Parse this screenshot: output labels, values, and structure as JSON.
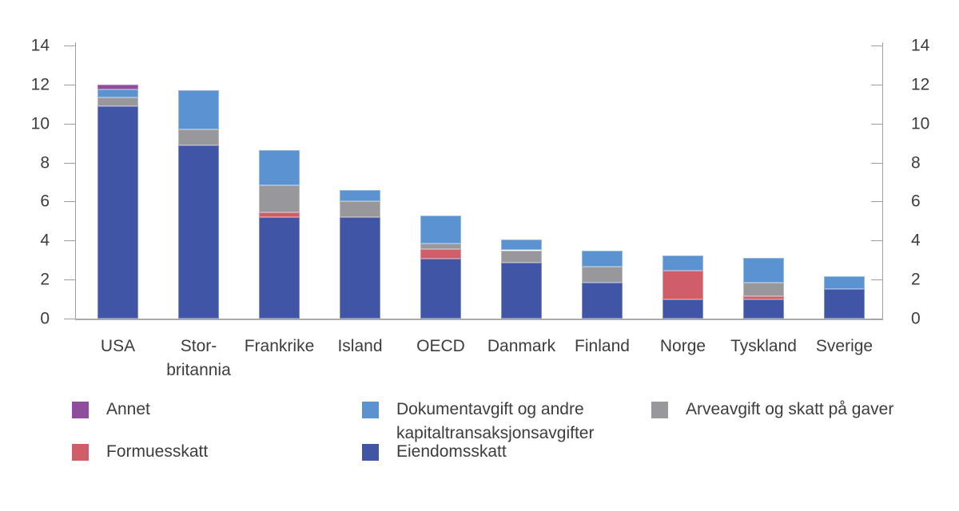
{
  "figure": {
    "background": "#ffffff",
    "text_color": "#3d3d3d",
    "axis_color": "#9e9e9e"
  },
  "chart_data": {
    "type": "bar",
    "stacked": true,
    "grid": false,
    "ylim": [
      0,
      14
    ],
    "y_ticks": [
      0,
      2,
      4,
      6,
      8,
      10,
      12,
      14
    ],
    "right_axis_mirror": true,
    "title": "",
    "xlabel": "",
    "ylabel": "",
    "categories": [
      "USA",
      "Storbritannia",
      "Frankrike",
      "Island",
      "OECD",
      "Danmark",
      "Finland",
      "Norge",
      "Tyskland",
      "Sverige"
    ],
    "categories_display": [
      "USA",
      "Stor-\nbritannia",
      "Frankrike",
      "Island",
      "OECD",
      "Danmark",
      "Finland",
      "Norge",
      "Tyskland",
      "Sverige"
    ],
    "series": [
      {
        "name": "Eiendomsskatt",
        "color": "#4055a6",
        "values": [
          10.9,
          8.9,
          5.2,
          5.2,
          3.05,
          2.85,
          1.85,
          1.0,
          1.0,
          1.5
        ]
      },
      {
        "name": "Formuesskatt",
        "color": "#d05e68",
        "values": [
          0,
          0,
          0.25,
          0,
          0.5,
          0,
          0,
          1.45,
          0.15,
          0
        ]
      },
      {
        "name": "Arveavgift og skatt på gaver",
        "color": "#98979b",
        "values": [
          0.45,
          0.8,
          1.4,
          0.8,
          0.3,
          0.65,
          0.8,
          0,
          0.7,
          0
        ]
      },
      {
        "name": "Dokumentavgift og andre kapitaltransaksjonsavgifter",
        "color": "#5b92d0",
        "values": [
          0.4,
          2.0,
          1.8,
          0.6,
          1.45,
          0.55,
          0.85,
          0.8,
          1.25,
          0.65
        ]
      },
      {
        "name": "Annet",
        "color": "#8f4d9d",
        "values": [
          0.25,
          0,
          0,
          0,
          0,
          0,
          0,
          0,
          0,
          0
        ]
      }
    ],
    "totals": [
      12.0,
      11.7,
      8.65,
      6.6,
      5.3,
      4.05,
      3.5,
      3.25,
      3.1,
      2.15
    ],
    "legend_position": "bottom"
  },
  "legend": {
    "items": [
      {
        "label": "Annet",
        "color": "#8f4d9d"
      },
      {
        "label": "Formuesskatt",
        "color": "#d05e68"
      },
      {
        "label": "Dokumentavgift og andre\nkapitaltransaksjonsavgifter",
        "color": "#5b92d0"
      },
      {
        "label": "Eiendomsskatt",
        "color": "#4055a6"
      },
      {
        "label": "Arveavgift og skatt på gaver",
        "color": "#98979b"
      }
    ]
  }
}
